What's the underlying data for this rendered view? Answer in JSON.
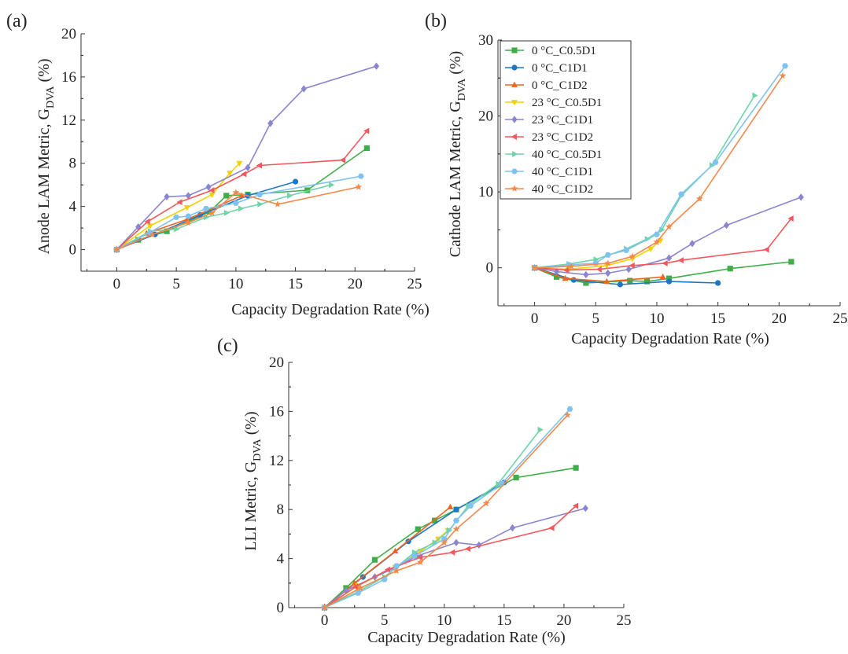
{
  "chart_data": [
    {
      "panel_label": "(a)",
      "type": "line",
      "ylabel_main": "Anode LAM Metric, G",
      "ylabel_sub": "DVA",
      "ylabel_unit": " (%)",
      "xlabel": "Capacity Degradation Rate (%)",
      "xlim": [
        -3,
        25
      ],
      "ylim": [
        -2,
        20
      ],
      "xticks": [
        0,
        5,
        10,
        15,
        20,
        25
      ],
      "yticks": [
        0,
        4,
        8,
        12,
        16,
        20
      ],
      "series": [
        {
          "name": "0 °C_C0.5D1",
          "x": [
            0,
            1.8,
            4.2,
            7.8,
            9.2,
            11,
            16,
            21
          ],
          "y": [
            0,
            0.9,
            1.7,
            3.5,
            5.0,
            5.1,
            5.5,
            9.4
          ]
        },
        {
          "name": "0 °C_C1D1",
          "x": [
            0,
            3.2,
            7,
            11,
            15
          ],
          "y": [
            0,
            1.4,
            3.2,
            5.0,
            6.3
          ]
        },
        {
          "name": "0 °C_C1D2",
          "x": [
            0,
            2.5,
            5.9,
            10.5
          ],
          "y": [
            0,
            1.5,
            2.8,
            5.0
          ]
        },
        {
          "name": "23 °C_C0.5D1",
          "x": [
            0,
            2.8,
            5.9,
            8,
            9.5,
            10.3
          ],
          "y": [
            0,
            2.2,
            3.9,
            5.1,
            7.1,
            8.0
          ]
        },
        {
          "name": "23 °C_C1D1",
          "x": [
            0,
            1.8,
            4.2,
            6,
            7.7,
            11,
            12.9,
            15.7,
            21.8
          ],
          "y": [
            0,
            2.1,
            4.9,
            5.0,
            5.8,
            7.6,
            11.7,
            14.9,
            17.0
          ]
        },
        {
          "name": "23 °C_C1D2",
          "x": [
            0,
            2.6,
            5.3,
            8,
            10.7,
            12,
            19,
            21
          ],
          "y": [
            0,
            2.6,
            4.4,
            5.5,
            7.0,
            7.8,
            8.3,
            11.0
          ]
        },
        {
          "name": "40 °C_C0.5D1",
          "x": [
            0,
            2.8,
            5,
            7.5,
            9.2,
            10.4,
            12,
            14.5,
            18
          ],
          "y": [
            0,
            1.7,
            1.9,
            3.0,
            3.4,
            3.8,
            4.2,
            5.0,
            6.0
          ]
        },
        {
          "name": "40 °C_C1D1",
          "x": [
            0,
            2.8,
            5,
            6,
            7.5,
            10,
            12,
            20.5
          ],
          "y": [
            0,
            1.6,
            3.0,
            3.1,
            3.8,
            4.3,
            5.1,
            6.8
          ]
        },
        {
          "name": "40 °C_C1D2",
          "x": [
            0,
            3,
            6,
            8,
            10,
            13.5,
            20.3
          ],
          "y": [
            0,
            1.4,
            2.5,
            3.4,
            5.3,
            4.2,
            5.8
          ]
        }
      ]
    },
    {
      "panel_label": "(b)",
      "type": "line",
      "ylabel_main": "Cathode LAM Metric, G",
      "ylabel_sub": "DVA",
      "ylabel_unit": " (%)",
      "xlabel": "Capacity Degradation Rate (%)",
      "xlim": [
        -3,
        25
      ],
      "ylim": [
        -5,
        30
      ],
      "xticks": [
        0,
        5,
        10,
        15,
        20,
        25
      ],
      "yticks": [
        0,
        10,
        20,
        30
      ],
      "legend_position": "top-left",
      "series": [
        {
          "name": "0 °C_C0.5D1",
          "x": [
            0,
            1.8,
            4.2,
            7.8,
            9.2,
            11,
            16,
            21
          ],
          "y": [
            0,
            -1.2,
            -2.0,
            -1.7,
            -1.8,
            -1.4,
            -0.1,
            0.8
          ]
        },
        {
          "name": "0 °C_C1D1",
          "x": [
            0,
            3.2,
            7,
            11,
            15
          ],
          "y": [
            0,
            -1.6,
            -2.2,
            -1.8,
            -2.0
          ]
        },
        {
          "name": "0 °C_C1D2",
          "x": [
            0,
            2.5,
            5.9,
            10.5
          ],
          "y": [
            0,
            -1.4,
            -1.8,
            -1.2
          ]
        },
        {
          "name": "23 °C_C0.5D1",
          "x": [
            0,
            2.8,
            5.9,
            8,
            9.5,
            10.3
          ],
          "y": [
            0,
            -0.2,
            0.3,
            1.2,
            2.5,
            3.6
          ]
        },
        {
          "name": "23 °C_C1D1",
          "x": [
            0,
            1.8,
            4.2,
            6,
            7.7,
            11,
            12.9,
            15.7,
            21.8
          ],
          "y": [
            0,
            -0.5,
            -0.9,
            -0.7,
            -0.2,
            1.3,
            3.2,
            5.6,
            9.3
          ]
        },
        {
          "name": "23 °C_C1D2",
          "x": [
            0,
            2.6,
            5.3,
            8,
            10.7,
            12,
            19,
            21
          ],
          "y": [
            0,
            -0.3,
            -0.2,
            0.3,
            0.6,
            1.0,
            2.4,
            6.5
          ]
        },
        {
          "name": "40 °C_C0.5D1",
          "x": [
            0,
            2.8,
            5,
            7.5,
            9.2,
            10.4,
            12,
            14.5,
            18
          ],
          "y": [
            0,
            0.5,
            1.1,
            2.5,
            3.8,
            5.0,
            9.5,
            13.5,
            22.7
          ]
        },
        {
          "name": "40 °C_C1D1",
          "x": [
            0,
            2.8,
            5,
            6,
            7.5,
            10,
            12,
            14.8,
            20.5
          ],
          "y": [
            0,
            0.4,
            0.6,
            1.7,
            2.3,
            4.4,
            9.7,
            13.9,
            26.6
          ]
        },
        {
          "name": "40 °C_C1D2",
          "x": [
            0,
            3,
            6,
            8,
            10,
            11,
            13.5,
            20.3
          ],
          "y": [
            0,
            0.2,
            0.6,
            1.5,
            3.4,
            5.4,
            9.1,
            25.3
          ]
        }
      ]
    },
    {
      "panel_label": "(c)",
      "type": "line",
      "ylabel_main": "LLI Metric, G",
      "ylabel_sub": "DVA",
      "ylabel_unit": " (%)",
      "xlabel": "Capacity Degradation Rate (%)",
      "xlim": [
        -3,
        25
      ],
      "ylim": [
        0,
        20
      ],
      "xticks": [
        0,
        5,
        10,
        15,
        20,
        25
      ],
      "yticks": [
        0,
        4,
        8,
        12,
        16,
        20
      ],
      "series": [
        {
          "name": "0 °C_C0.5D1",
          "x": [
            0,
            1.8,
            4.2,
            7.8,
            9.2,
            11,
            16,
            21
          ],
          "y": [
            0,
            1.6,
            3.9,
            6.4,
            7.1,
            8.0,
            10.6,
            11.4
          ]
        },
        {
          "name": "0 °C_C1D1",
          "x": [
            0,
            3.2,
            7,
            11,
            15
          ],
          "y": [
            0,
            2.5,
            5.4,
            8.0,
            10.2
          ]
        },
        {
          "name": "0 °C_C1D2",
          "x": [
            0,
            2.5,
            5.9,
            10.5
          ],
          "y": [
            0,
            2.0,
            4.6,
            8.2
          ]
        },
        {
          "name": "23 °C_C0.5D1",
          "x": [
            0,
            2.8,
            5.9,
            8,
            9.5,
            10.3
          ],
          "y": [
            0,
            1.8,
            3.3,
            4.6,
            5.6,
            6.3
          ]
        },
        {
          "name": "23 °C_C1D1",
          "x": [
            0,
            1.8,
            4.2,
            6,
            7.7,
            11,
            12.9,
            15.7,
            21.8
          ],
          "y": [
            0,
            1.4,
            2.5,
            3.3,
            4.2,
            5.3,
            5.1,
            6.5,
            8.1
          ]
        },
        {
          "name": "23 °C_C1D2",
          "x": [
            0,
            2.6,
            5.3,
            8,
            10.7,
            12,
            19,
            21
          ],
          "y": [
            0,
            1.7,
            3.1,
            4.1,
            4.5,
            4.8,
            6.5,
            8.3
          ]
        },
        {
          "name": "40 °C_C0.5D1",
          "x": [
            0,
            2.8,
            5,
            7.5,
            9.2,
            10.4,
            12,
            14.5,
            18
          ],
          "y": [
            0,
            1.3,
            2.5,
            4.5,
            5.3,
            6.3,
            8.3,
            10.1,
            14.5
          ]
        },
        {
          "name": "40 °C_C1D1",
          "x": [
            0,
            2.8,
            5,
            6,
            7.5,
            10,
            11,
            12.2,
            14.8,
            20.5
          ],
          "y": [
            0,
            1.2,
            2.3,
            3.4,
            4.2,
            5.6,
            7.1,
            8.3,
            10.1,
            16.2
          ]
        },
        {
          "name": "40 °C_C1D2",
          "x": [
            0,
            3,
            6,
            8,
            10,
            11,
            13.5,
            20.3
          ],
          "y": [
            0,
            1.6,
            3.0,
            3.7,
            5.3,
            6.4,
            8.5,
            15.7
          ]
        }
      ]
    }
  ],
  "series_styles": [
    {
      "color": "#3fae49",
      "marker": "square"
    },
    {
      "color": "#1f77c4",
      "marker": "circle"
    },
    {
      "color": "#f0641e",
      "marker": "triangle-up"
    },
    {
      "color": "#f5d000",
      "marker": "triangle-down"
    },
    {
      "color": "#8b85d0",
      "marker": "diamond"
    },
    {
      "color": "#f2585c",
      "marker": "triangle-left"
    },
    {
      "color": "#6ed4a8",
      "marker": "triangle-right"
    },
    {
      "color": "#7ec3ef",
      "marker": "hexagon"
    },
    {
      "color": "#f3894a",
      "marker": "star"
    }
  ]
}
